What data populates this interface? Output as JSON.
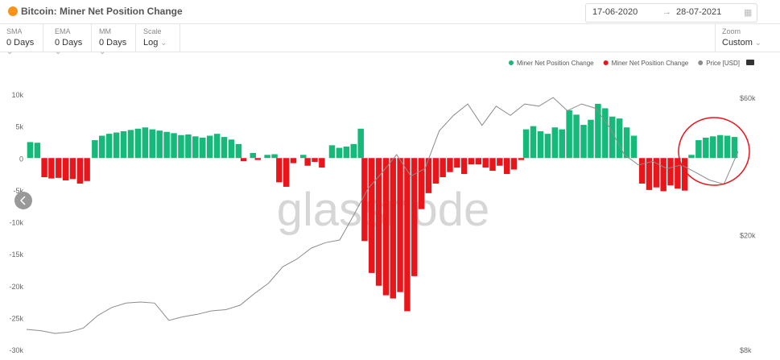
{
  "header": {
    "title": "Bitcoin: Miner Net Position Change",
    "date_from": "17-06-2020",
    "date_to": "28-07-2021"
  },
  "controls": [
    {
      "label": "SMA",
      "value": "0 Days"
    },
    {
      "label": "EMA",
      "value": "0 Days"
    },
    {
      "label": "MM",
      "value": "0 Days"
    },
    {
      "label": "Scale",
      "value": "Log"
    },
    {
      "label": "Zoom",
      "value": "Custom"
    }
  ],
  "chart_data": {
    "type": "bar",
    "watermark": "glassnode",
    "ylim": [
      -30000,
      10000
    ],
    "yticks": [
      {
        "value": 10000,
        "label": "10k"
      },
      {
        "value": 5000,
        "label": "5k"
      },
      0,
      {
        "value": -5000,
        "label": "-5k"
      },
      {
        "value": -10000,
        "label": "-10k"
      },
      {
        "value": -15000,
        "label": "-15k"
      },
      {
        "value": -20000,
        "label": "-20k"
      },
      {
        "value": -25000,
        "label": "-25k"
      },
      {
        "value": -30000,
        "label": "-30k"
      }
    ],
    "y2lim": [
      8000,
      61600
    ],
    "y2log": true,
    "y2ticks": [
      {
        "value": 60000,
        "label": "$60k"
      },
      {
        "value": 20000,
        "label": "$20k"
      },
      {
        "value": 8000,
        "label": "$8k"
      }
    ],
    "series": [
      {
        "name": "Miner Net Position Change",
        "color": "#16b97a",
        "values": [
          2500,
          2400,
          null,
          null,
          null,
          null,
          null,
          null,
          null,
          2800,
          3500,
          3800,
          4000,
          4200,
          4400,
          4600,
          4800,
          4500,
          4300,
          4100,
          3900,
          3600,
          3700,
          3400,
          3200,
          3500,
          3800,
          3300,
          2900,
          2200,
          null,
          800,
          null,
          500,
          600,
          null,
          null,
          null,
          500,
          null,
          null,
          null,
          2000,
          1600,
          1800,
          2200,
          4600,
          null,
          null,
          null,
          null,
          null,
          null,
          null,
          null,
          null,
          null,
          null,
          null,
          null,
          null,
          null,
          null,
          null,
          null,
          null,
          null,
          null,
          null,
          4500,
          5000,
          4200,
          3800,
          4800,
          4500,
          7500,
          6800,
          5200,
          6000,
          8500,
          7800,
          6500,
          6200,
          4800,
          3500,
          null,
          null,
          null,
          null,
          null,
          null,
          null,
          500,
          2800,
          3200,
          3400,
          3600,
          3500,
          3300
        ]
      },
      {
        "name": "Miner Net Position Change",
        "color": "#e8151b",
        "values": [
          null,
          null,
          -3000,
          -3200,
          -3100,
          -3500,
          -3300,
          -4000,
          -3600,
          null,
          null,
          null,
          null,
          null,
          null,
          null,
          null,
          null,
          null,
          null,
          null,
          null,
          null,
          null,
          null,
          null,
          null,
          null,
          null,
          null,
          -500,
          null,
          -300,
          null,
          null,
          -3800,
          -4500,
          -800,
          null,
          -1200,
          -600,
          -1500,
          null,
          null,
          null,
          null,
          null,
          -13000,
          -18000,
          -20000,
          -21500,
          -22000,
          -21000,
          -24000,
          -18500,
          -8000,
          -5500,
          -4000,
          -3000,
          -2200,
          -1500,
          -2500,
          -1000,
          -1000,
          -1500,
          -2000,
          -1200,
          -2500,
          -1800,
          -300,
          null,
          null,
          null,
          null,
          null,
          null,
          null,
          null,
          null,
          null,
          null,
          null,
          null,
          null,
          null,
          null,
          -4000,
          -5000,
          -4600,
          -5200,
          -4300,
          -4800,
          -5100,
          null,
          null,
          null,
          null,
          null,
          null,
          null
        ]
      },
      {
        "name": "Price [USD]",
        "color": "#8c8c8c",
        "axis": "y2",
        "values": [
          9400,
          9300,
          9100,
          9200,
          9500,
          10500,
          11200,
          11600,
          11700,
          11600,
          10100,
          10400,
          10600,
          10900,
          11000,
          11400,
          12500,
          13600,
          15500,
          16500,
          18000,
          18800,
          19200,
          23500,
          29000,
          33000,
          38000,
          32000,
          34000,
          46000,
          52000,
          57000,
          48000,
          56000,
          52000,
          57000,
          56000,
          60000,
          54000,
          57000,
          55000,
          47000,
          38000,
          35000,
          36000,
          34000,
          35000,
          33000,
          31000,
          30000,
          39000
        ]
      }
    ]
  }
}
